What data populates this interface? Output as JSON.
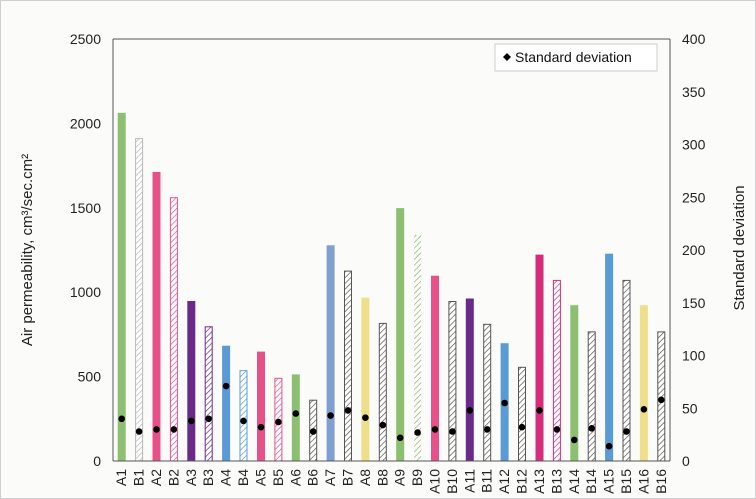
{
  "chart_data": {
    "type": "bar",
    "categories": [
      "A1",
      "B1",
      "A2",
      "B2",
      "A3",
      "B3",
      "A4",
      "B4",
      "A5",
      "B5",
      "A6",
      "B6",
      "A7",
      "B7",
      "A8",
      "B8",
      "A9",
      "B9",
      "A10",
      "B10",
      "A11",
      "B11",
      "A12",
      "B12",
      "A13",
      "B13",
      "A14",
      "B14",
      "A15",
      "B15",
      "A16",
      "B16"
    ],
    "series": [
      {
        "axis": "left",
        "values": [
          2060,
          1910,
          1710,
          1560,
          945,
          795,
          680,
          535,
          645,
          490,
          510,
          360,
          1275,
          1125,
          965,
          815,
          1495,
          1340,
          1095,
          945,
          960,
          810,
          695,
          555,
          1220,
          1070,
          920,
          765,
          1225,
          1070,
          920,
          765
        ],
        "colors": [
          "#8cc070",
          "#b8b8b8",
          "#e8508a",
          "#e8508a",
          "#6a2a8a",
          "#6a2a8a",
          "#5b9bd5",
          "#5b9bd5",
          "#e8508a",
          "#e8508a",
          "#8cc070",
          "#555555",
          "#7fa0d0",
          "#555555",
          "#f0df8a",
          "#555555",
          "#8cc070",
          "#8cc070",
          "#e8508a",
          "#555555",
          "#6a2a8a",
          "#555555",
          "#5b9bd5",
          "#555555",
          "#d62d7b",
          "#d62d7b",
          "#8cc070",
          "#555555",
          "#5b9bd5",
          "#555555",
          "#f0df8a",
          "#555555"
        ],
        "patterns": [
          "solid",
          "hatch",
          "solid",
          "hatch",
          "solid",
          "hatch",
          "solid",
          "hatch",
          "solid",
          "hatch",
          "solid",
          "hatch",
          "solid",
          "hatch",
          "solid",
          "hatch",
          "solid",
          "hatch-light",
          "solid",
          "hatch",
          "solid",
          "hatch",
          "solid",
          "hatch",
          "solid",
          "hatch",
          "solid",
          "hatch",
          "solid",
          "hatch",
          "solid",
          "hatch"
        ]
      },
      {
        "name": "Standard deviation",
        "axis": "right",
        "type": "scatter",
        "values": [
          40,
          28,
          30,
          30,
          38,
          40,
          71,
          38,
          32,
          37,
          45,
          28,
          43,
          48,
          41,
          34,
          22,
          27,
          30,
          28,
          48,
          30,
          55,
          32,
          48,
          30,
          20,
          31,
          14,
          28,
          49,
          58
        ]
      }
    ],
    "ylabel": "Air permeability, cm³/sec.cm²",
    "y2label": "Standard deviation",
    "ylim": [
      0,
      2500
    ],
    "y2lim": [
      0,
      400
    ],
    "yticks": [
      "0",
      "500",
      "1000",
      "1500",
      "2000",
      "2500"
    ],
    "y2ticks": [
      "0",
      "50",
      "100",
      "150",
      "200",
      "250",
      "300",
      "350",
      "400"
    ],
    "legend": {
      "label": "Standard deviation",
      "placement": "top-right"
    },
    "grid": false
  }
}
